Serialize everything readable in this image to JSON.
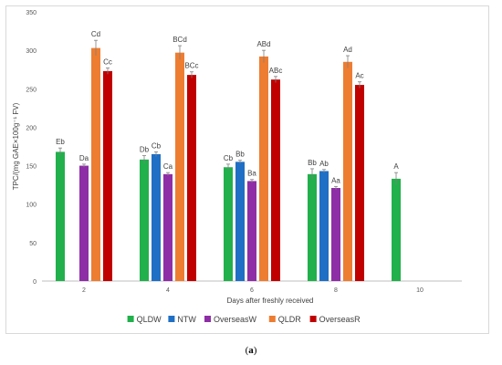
{
  "caption": {
    "open": "(",
    "letter": "a",
    "close": ")"
  },
  "chart_data": {
    "type": "bar",
    "title": "",
    "xlabel": "Days after freshly received",
    "ylabel": "TPC/(mg GAE×100g⁻¹ FV)",
    "ylim": [
      0,
      350
    ],
    "y_ticks": [
      0,
      50,
      100,
      150,
      200,
      250,
      300,
      350
    ],
    "grid": false,
    "legend_position": "bottom",
    "categories": [
      "2",
      "4",
      "6",
      "8",
      "10"
    ],
    "series": [
      {
        "name": "QLDW",
        "color": "#21b04b",
        "values": [
          168,
          158,
          148,
          139,
          133
        ],
        "errors": [
          5,
          5,
          4,
          7,
          8
        ],
        "labels": [
          "Eb",
          "Db",
          "Cb",
          "Bb",
          "A"
        ]
      },
      {
        "name": "NTW",
        "color": "#1f6fc5",
        "values": [
          null,
          165,
          155,
          143,
          null
        ],
        "errors": [
          0,
          3,
          2,
          2,
          0
        ],
        "labels": [
          "",
          "Cb",
          "Bb",
          "Ab",
          ""
        ]
      },
      {
        "name": "OverseasW",
        "color": "#8e2ea6",
        "values": [
          150,
          139,
          130,
          121,
          null
        ],
        "errors": [
          2,
          2,
          2,
          2,
          0
        ],
        "labels": [
          "Da",
          "Ca",
          "Ba",
          "Aa",
          ""
        ]
      },
      {
        "name": "QLDR",
        "color": "#ed7d31",
        "values": [
          303,
          297,
          292,
          285,
          null
        ],
        "errors": [
          10,
          9,
          8,
          8,
          0
        ],
        "labels": [
          "Cd",
          "BCd",
          "ABd",
          "Ad",
          ""
        ]
      },
      {
        "name": "OverseasR",
        "color": "#c00000",
        "values": [
          273,
          268,
          262,
          255,
          null
        ],
        "errors": [
          4,
          4,
          4,
          4,
          0
        ],
        "labels": [
          "Cc",
          "BCc",
          "ABc",
          "Ac",
          ""
        ]
      }
    ]
  }
}
